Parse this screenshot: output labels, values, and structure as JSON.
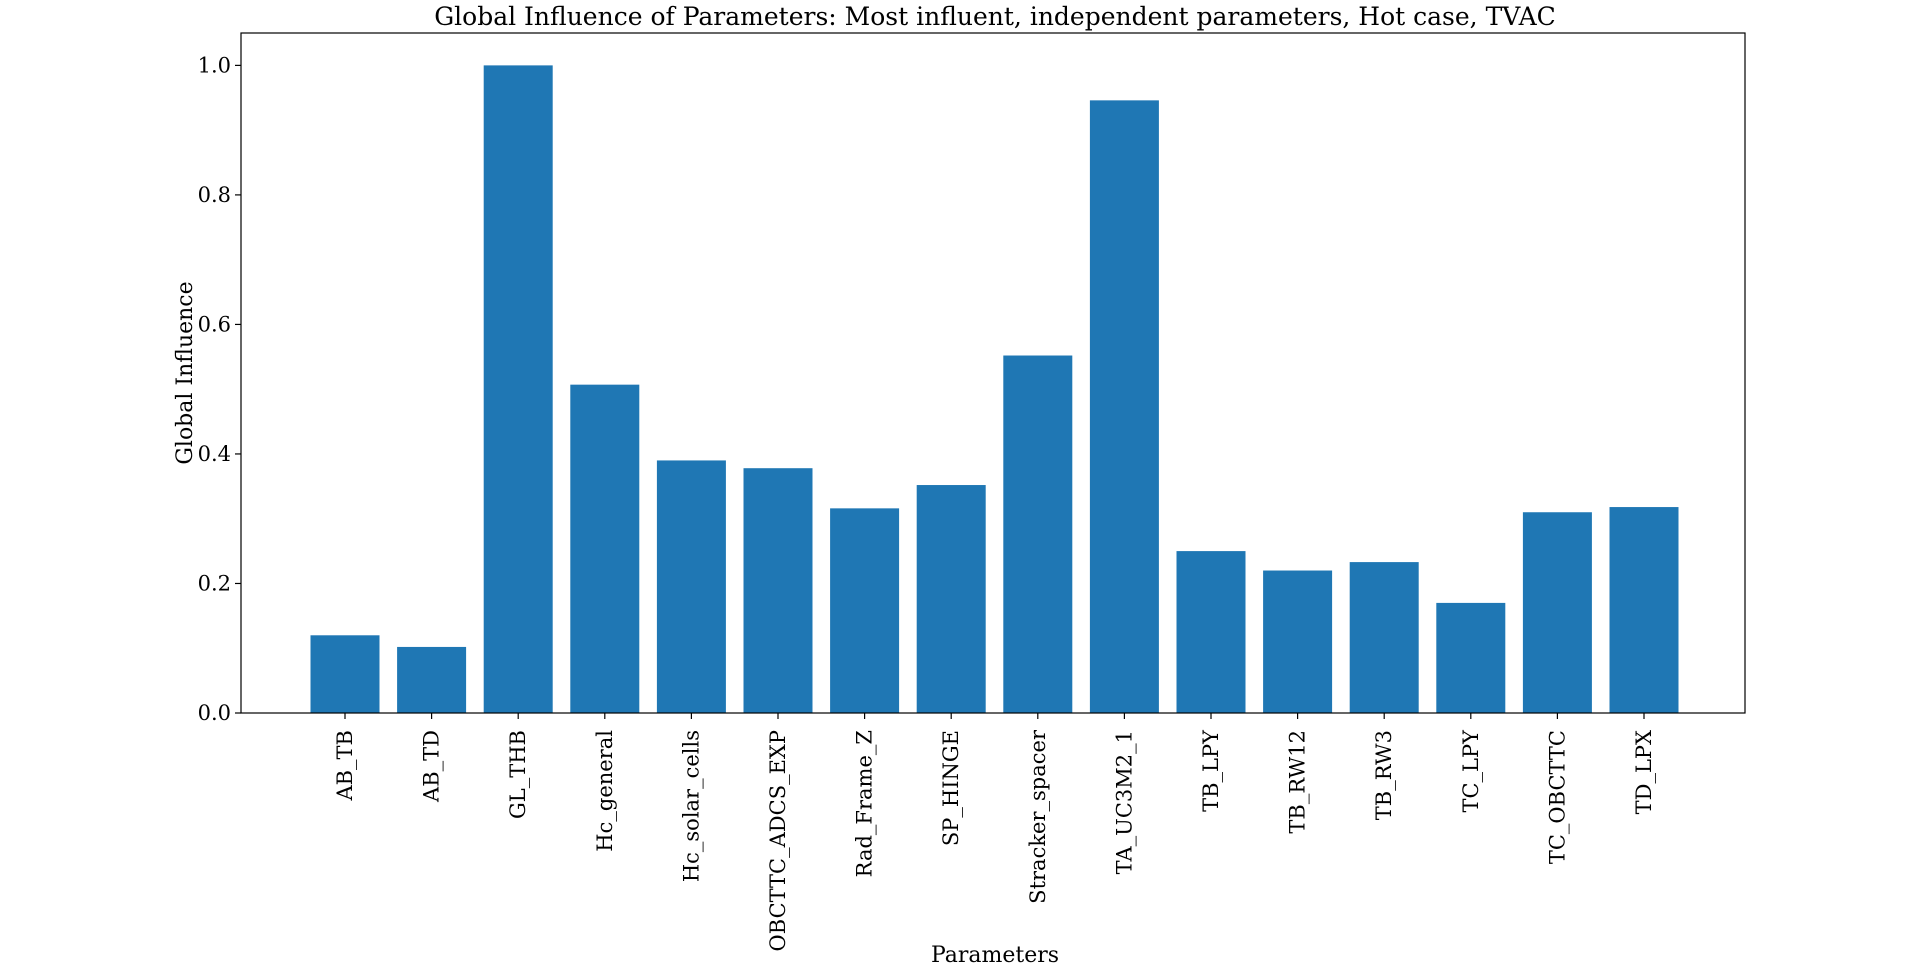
{
  "chart_data": {
    "type": "bar",
    "title": "Global Influence of Parameters: Most influent, independent parameters, Hot case, TVAC",
    "xlabel": "Parameters",
    "ylabel": "Global Influence",
    "ylim": [
      0,
      1.05
    ],
    "yticks": [
      0.0,
      0.2,
      0.4,
      0.6,
      0.8,
      1.0
    ],
    "ytick_labels": [
      "0.0",
      "0.2",
      "0.4",
      "0.6",
      "0.8",
      "1.0"
    ],
    "categories": [
      "AB_TB",
      "AB_TD",
      "GL_THB",
      "Hc_general",
      "Hc_solar_cells",
      "OBCTTC_ADCS_EXP",
      "Rad_Frame_Z",
      "SP_HINGE",
      "Stracker_spacer",
      "TA_UC3M2_1",
      "TB_LPY",
      "TB_RW12",
      "TB_RW3",
      "TC_LPY",
      "TC_OBCTTC",
      "TD_LPX"
    ],
    "values": [
      0.12,
      0.102,
      1.0,
      0.507,
      0.39,
      0.378,
      0.316,
      0.352,
      0.552,
      0.946,
      0.25,
      0.22,
      0.233,
      0.17,
      0.31,
      0.318
    ],
    "grid": false,
    "legend": "none",
    "bar_color": "#1f77b4"
  }
}
